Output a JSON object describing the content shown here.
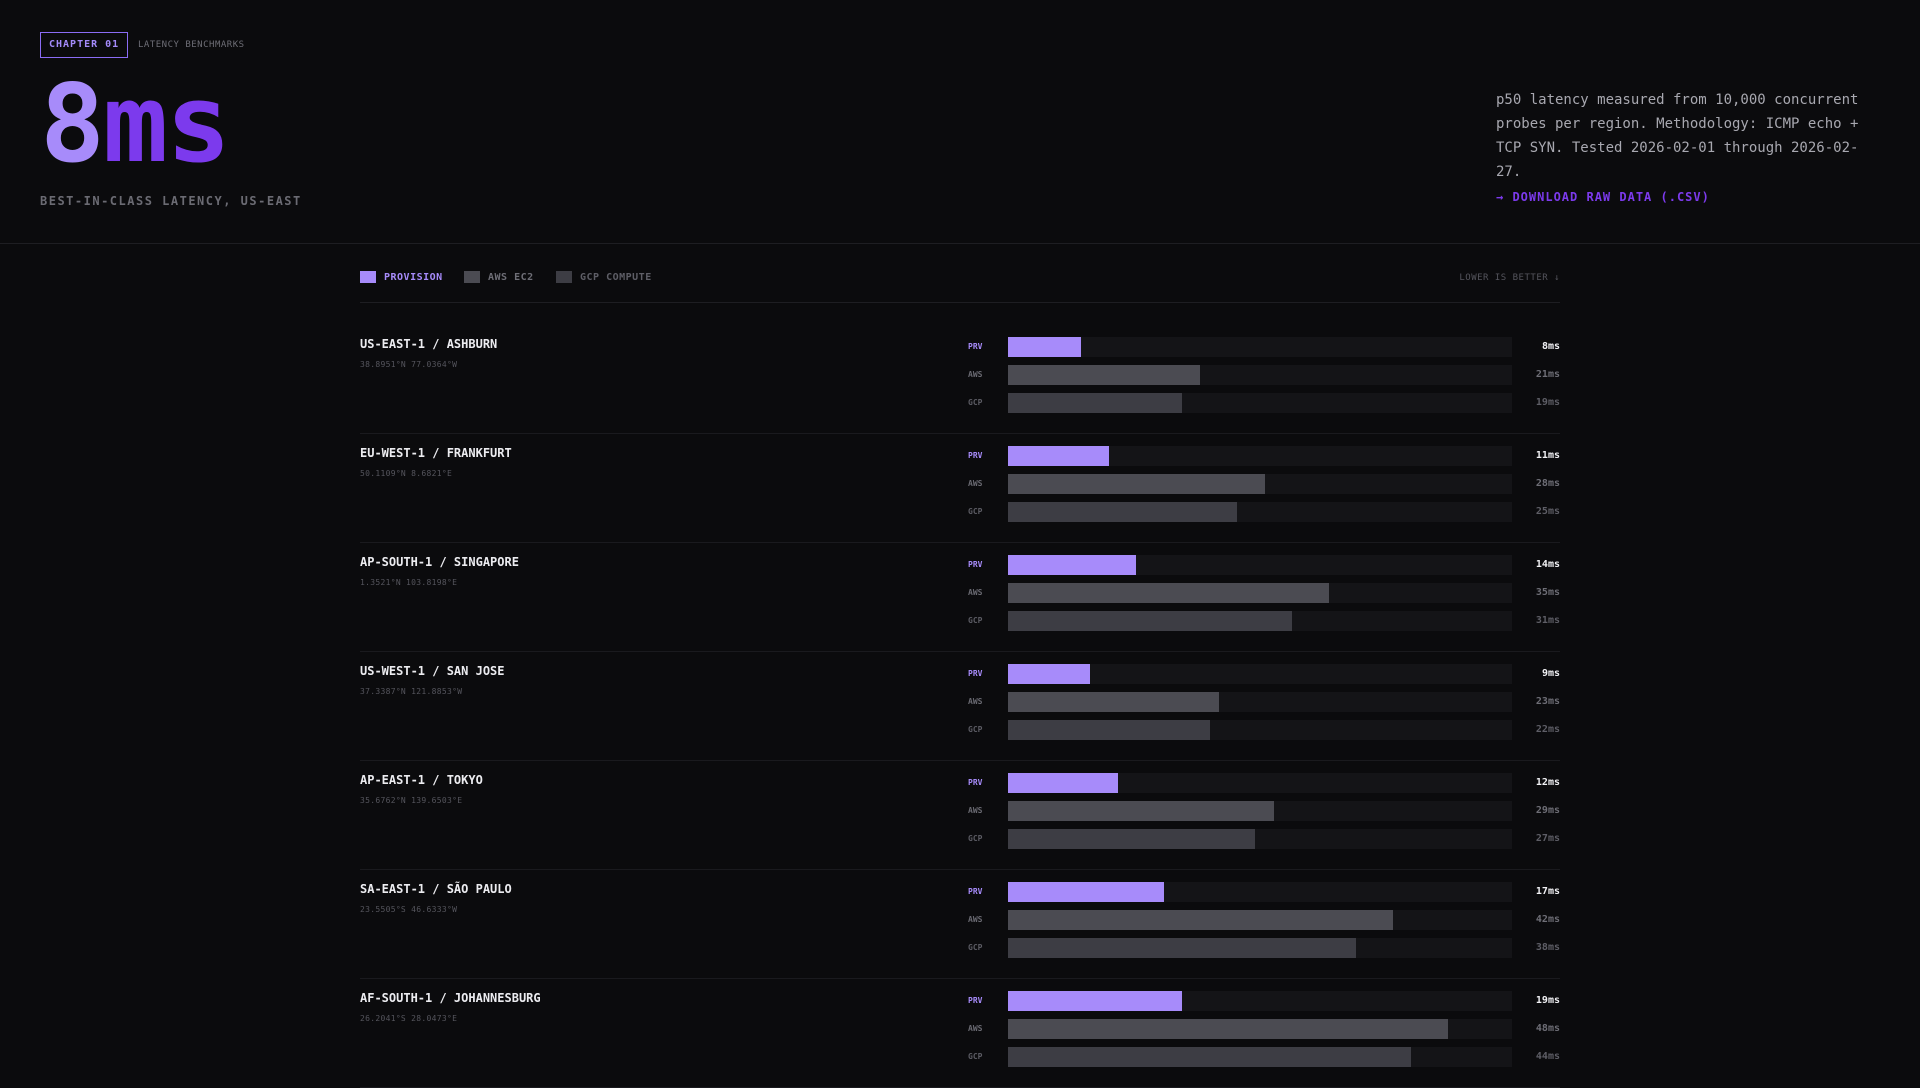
{
  "hero": {
    "chapter": "CHAPTER 01",
    "chapter_subtitle": "LATENCY BENCHMARKS",
    "big_number": "8",
    "big_unit": "ms",
    "tagline": "BEST-IN-CLASS LATENCY, US-EAST",
    "methodology": "p50 latency measured from 10,000 concurrent probes per region. Methodology: ICMP echo + TCP SYN. Tested 2026-02-01 through 2026-02-27.",
    "download_label": "→ DOWNLOAD RAW DATA (.CSV)"
  },
  "legend": {
    "items": [
      {
        "label": "PROVISION",
        "color": "#a78bfa",
        "text_color": "#a78bfa"
      },
      {
        "label": "AWS EC2",
        "color": "#4b4b52",
        "text_color": "#6e6e76"
      },
      {
        "label": "GCP COMPUTE",
        "color": "#3d3d44",
        "text_color": "#5e5e66"
      }
    ],
    "note": "LOWER IS BETTER ↓"
  },
  "colors": {
    "accent": "#a78bfa",
    "accent_dark": "#7c3aed",
    "aws": "#4b4b52",
    "gcp": "#3d3d44"
  },
  "chart_data": {
    "type": "bar",
    "orientation": "horizontal",
    "unit": "ms",
    "xlim": [
      0,
      55
    ],
    "series_labels": [
      "PRV",
      "AWS",
      "GCP"
    ],
    "categories": [
      {
        "name": "US-EAST-1 / ASHBURN",
        "coords": "38.8951°N 77.0364°W",
        "values": [
          8,
          21,
          19
        ],
        "labels": [
          "8ms",
          "21ms",
          "19ms"
        ]
      },
      {
        "name": "EU-WEST-1 / FRANKFURT",
        "coords": "50.1109°N 8.6821°E",
        "values": [
          11,
          28,
          25
        ],
        "labels": [
          "11ms",
          "28ms",
          "25ms"
        ]
      },
      {
        "name": "AP-SOUTH-1 / SINGAPORE",
        "coords": "1.3521°N 103.8198°E",
        "values": [
          14,
          35,
          31
        ],
        "labels": [
          "14ms",
          "35ms",
          "31ms"
        ]
      },
      {
        "name": "US-WEST-1 / SAN JOSE",
        "coords": "37.3387°N 121.8853°W",
        "values": [
          9,
          23,
          22
        ],
        "labels": [
          "9ms",
          "23ms",
          "22ms"
        ]
      },
      {
        "name": "AP-EAST-1 / TOKYO",
        "coords": "35.6762°N 139.6503°E",
        "values": [
          12,
          29,
          27
        ],
        "labels": [
          "12ms",
          "29ms",
          "27ms"
        ]
      },
      {
        "name": "SA-EAST-1 / SÃO PAULO",
        "coords": "23.5505°S 46.6333°W",
        "values": [
          17,
          42,
          38
        ],
        "labels": [
          "17ms",
          "42ms",
          "38ms"
        ]
      },
      {
        "name": "AF-SOUTH-1 / JOHANNESBURG",
        "coords": "26.2041°S 28.0473°E",
        "values": [
          19,
          48,
          44
        ],
        "labels": [
          "19ms",
          "48ms",
          "44ms"
        ]
      }
    ]
  }
}
